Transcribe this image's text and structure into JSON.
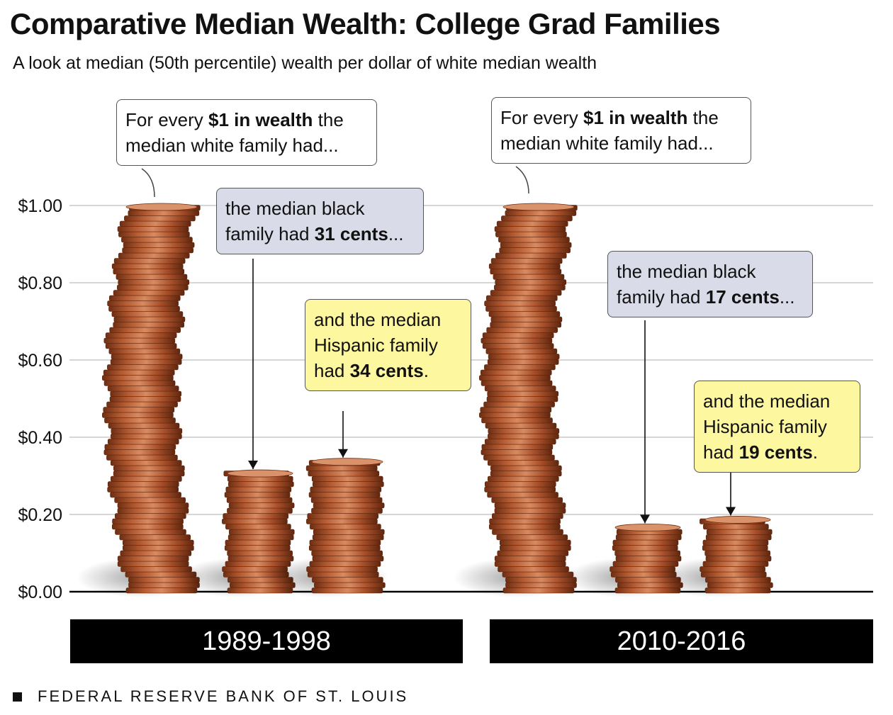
{
  "title": "Comparative Median Wealth: College Grad Families",
  "subtitle": "A look at median (50th percentile) wealth per dollar of white median wealth",
  "source": "FEDERAL RESERVE BANK OF ST. LOUIS",
  "colors": {
    "copper_dark": "#7a3416",
    "copper_mid": "#b35a32",
    "copper_light": "#e09a72",
    "callout_black": "#d9dbe8",
    "callout_hispanic": "#fdf7a0",
    "period_bar": "#000000",
    "grid": "#bdbdbd"
  },
  "chart_data": {
    "type": "bar",
    "categories": [
      "1989-1998",
      "2010-2016"
    ],
    "series": [
      {
        "name": "",
        "values": [
          1.0,
          1.0
        ]
      },
      {
        "name": "",
        "values": [
          0.31,
          0.17
        ]
      },
      {
        "name": "",
        "values": [
          0.34,
          0.19
        ]
      }
    ],
    "ylim": [
      0,
      1.0
    ],
    "yticks": [
      0.0,
      0.2,
      0.4,
      0.6,
      0.8,
      1.0
    ],
    "ytick_labels": [
      "$0.00",
      "$0.20",
      "$0.40",
      "$0.60",
      "$0.80",
      "$1.00"
    ],
    "grid": true,
    "mark_style": "stacked pennies"
  },
  "callouts": {
    "p1_white": {
      "pre": "For every ",
      "bold": "$1 in wealth",
      "post": " the median white family had..."
    },
    "p1_black": {
      "pre": "the median black family had ",
      "bold": "31 cents",
      "post": "..."
    },
    "p1_hispanic": {
      "pre": "and the median Hispanic family had ",
      "bold": "34 cents",
      "post": "."
    },
    "p2_white": {
      "pre": "For every ",
      "bold": "$1 in wealth",
      "post": " the median white family had..."
    },
    "p2_black": {
      "pre": "the median black family had ",
      "bold": "17 cents",
      "post": "..."
    },
    "p2_hispanic": {
      "pre": "and the median Hispanic family had ",
      "bold": "19 cents",
      "post": "."
    }
  }
}
